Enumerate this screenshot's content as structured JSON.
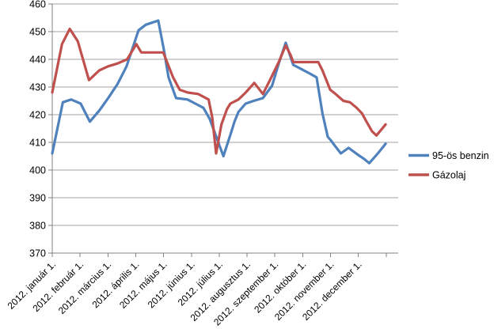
{
  "chart_data": {
    "type": "line",
    "title": "",
    "x_axis": {
      "unit": "months of 2012 (0 = 2012. január 1., 12 = 2012. december 31.)",
      "range": [
        0,
        12
      ],
      "tick_labels": [
        "2012. január 1.",
        "2012. február 1.",
        "2012. március 1.",
        "2012. április 1.",
        "2012. május 1.",
        "2012. június 1.",
        "2012. július 1.",
        "2012. augusztus 1.",
        "2012. szeptember 1.",
        "2012. október 1.",
        "2012. november 1.",
        "2012. december 1."
      ]
    },
    "y_axis": {
      "min": 370,
      "max": 460,
      "tick_interval": 10,
      "ticks": [
        460,
        450,
        440,
        430,
        420,
        410,
        400,
        390,
        380,
        370
      ]
    },
    "grid": true,
    "legend_position": "right",
    "series": [
      {
        "name": "95-ös benzin",
        "color": "#4F81BD",
        "points": [
          [
            0.0,
            406
          ],
          [
            0.38,
            424.5
          ],
          [
            0.68,
            425.5
          ],
          [
            1.02,
            424
          ],
          [
            1.35,
            417.5
          ],
          [
            1.69,
            421.5
          ],
          [
            2.01,
            426
          ],
          [
            2.34,
            431
          ],
          [
            2.67,
            437.5
          ],
          [
            3.1,
            450.5
          ],
          [
            3.36,
            452.5
          ],
          [
            3.81,
            454
          ],
          [
            4.02,
            443
          ],
          [
            4.18,
            433.5
          ],
          [
            4.45,
            426
          ],
          [
            4.86,
            425.5
          ],
          [
            5.14,
            424
          ],
          [
            5.43,
            422.5
          ],
          [
            5.66,
            418.5
          ],
          [
            6.15,
            405
          ],
          [
            6.41,
            413
          ],
          [
            6.55,
            417.5
          ],
          [
            6.69,
            421
          ],
          [
            6.95,
            424
          ],
          [
            7.24,
            425
          ],
          [
            7.57,
            426
          ],
          [
            7.9,
            430.5
          ],
          [
            8.14,
            438.5
          ],
          [
            8.39,
            446
          ],
          [
            8.66,
            438
          ],
          [
            8.95,
            436.5
          ],
          [
            9.23,
            435
          ],
          [
            9.5,
            433.5
          ],
          [
            9.71,
            420.5
          ],
          [
            9.9,
            412
          ],
          [
            9.99,
            411
          ],
          [
            10.18,
            408.5
          ],
          [
            10.37,
            406
          ],
          [
            10.65,
            408
          ],
          [
            10.99,
            405.5
          ],
          [
            11.21,
            404
          ],
          [
            11.39,
            402.5
          ],
          [
            11.7,
            406
          ],
          [
            11.98,
            409.5
          ]
        ]
      },
      {
        "name": "Gázolaj",
        "color": "#C0504D",
        "points": [
          [
            0.0,
            428
          ],
          [
            0.35,
            445.5
          ],
          [
            0.63,
            451
          ],
          [
            0.92,
            446.5
          ],
          [
            1.32,
            432.5
          ],
          [
            1.69,
            436
          ],
          [
            2.01,
            437.5
          ],
          [
            2.34,
            438.5
          ],
          [
            2.69,
            440
          ],
          [
            3.02,
            445.5
          ],
          [
            3.2,
            442.5
          ],
          [
            3.99,
            442.5
          ],
          [
            4.34,
            433.5
          ],
          [
            4.58,
            429
          ],
          [
            4.87,
            428
          ],
          [
            5.24,
            427.5
          ],
          [
            5.62,
            425.5
          ],
          [
            5.75,
            419
          ],
          [
            5.89,
            406
          ],
          [
            6.08,
            416.5
          ],
          [
            6.28,
            422
          ],
          [
            6.4,
            424
          ],
          [
            6.69,
            425.5
          ],
          [
            6.95,
            428
          ],
          [
            7.26,
            431.5
          ],
          [
            7.57,
            427.5
          ],
          [
            7.85,
            433
          ],
          [
            8.14,
            439
          ],
          [
            8.39,
            445
          ],
          [
            8.57,
            441.5
          ],
          [
            8.66,
            439
          ],
          [
            9.56,
            439
          ],
          [
            9.71,
            436
          ],
          [
            9.99,
            429
          ],
          [
            10.18,
            427.5
          ],
          [
            10.46,
            425
          ],
          [
            10.7,
            424.5
          ],
          [
            10.94,
            422.5
          ],
          [
            11.13,
            420.5
          ],
          [
            11.32,
            417
          ],
          [
            11.49,
            414
          ],
          [
            11.65,
            412.5
          ],
          [
            11.98,
            416.5
          ]
        ]
      }
    ],
    "colors": {
      "background": "#FFFFFF",
      "gridline": "#A3A3A3",
      "axis": "#808080",
      "text": "#000000"
    }
  }
}
